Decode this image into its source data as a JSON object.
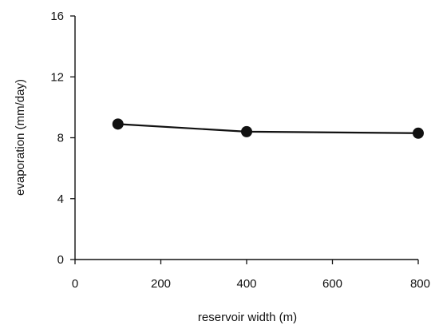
{
  "chart_data": {
    "type": "line",
    "title": "",
    "xlabel": "reservoir width (m)",
    "ylabel": "evaporation (mm/day)",
    "xlim": [
      0,
      800
    ],
    "ylim": [
      0,
      16
    ],
    "xticks": [
      0,
      200,
      400,
      600,
      800
    ],
    "yticks": [
      0,
      4,
      8,
      12,
      16
    ],
    "grid": false,
    "legend": "none",
    "series": [
      {
        "x": [
          100,
          400,
          800
        ],
        "y": [
          8.9,
          8.4,
          8.3
        ],
        "color": "#111111",
        "marker": "filled-circle"
      }
    ]
  }
}
